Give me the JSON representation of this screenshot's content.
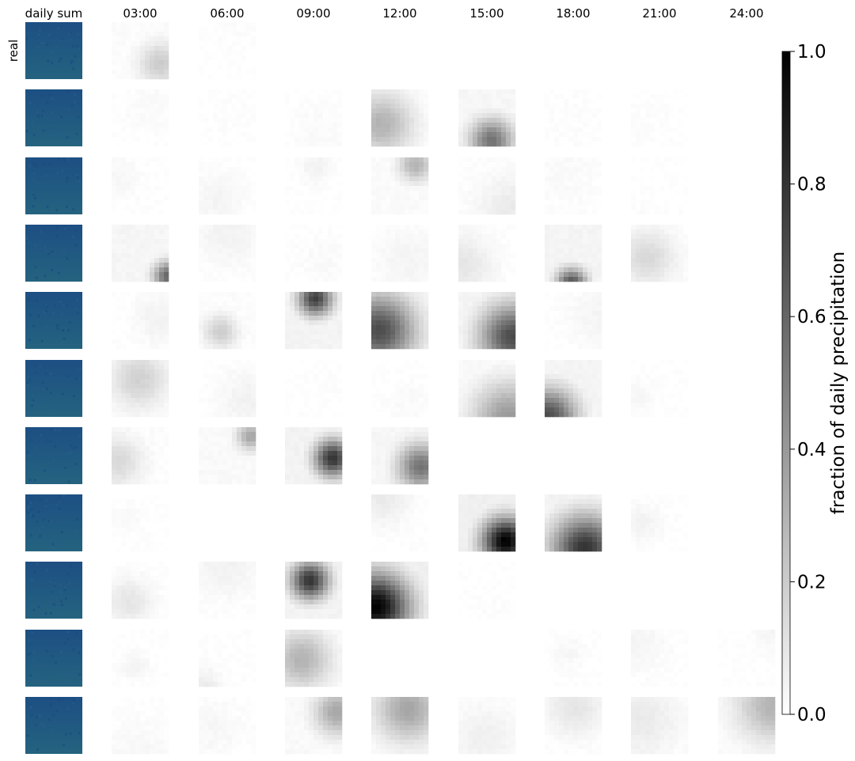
{
  "chart_data": {
    "type": "heatmap",
    "title": "",
    "column_headers": [
      "daily sum",
      "03:00",
      "06:00",
      "09:00",
      "12:00",
      "15:00",
      "18:00",
      "21:00",
      "24:00"
    ],
    "row_labels": [
      "real",
      "",
      "",
      "",
      "",
      "",
      "",
      "",
      "",
      "",
      ""
    ],
    "colorbar": {
      "label": "fraction of daily precipitation",
      "range": [
        0.0,
        1.0
      ],
      "ticks": [
        0.0,
        0.2,
        0.4,
        0.6,
        0.8,
        1.0
      ],
      "tick_labels": [
        "0.0",
        "0.2",
        "0.4",
        "0.6",
        "0.8",
        "1.0"
      ],
      "colormap": "gray_r"
    },
    "daily_sum_colors": [
      "#1d4f83",
      "#24637f"
    ],
    "cell_max_fraction": [
      [
        0.2,
        0.01,
        0.0,
        0.0,
        0.0,
        0.0,
        0.0,
        0.0
      ],
      [
        0.02,
        0.01,
        0.02,
        0.3,
        0.55,
        0.01,
        0.01,
        0.0
      ],
      [
        0.03,
        0.04,
        0.05,
        0.3,
        0.08,
        0.02,
        0.01,
        0.0
      ],
      [
        0.6,
        0.05,
        0.02,
        0.04,
        0.1,
        0.7,
        0.15,
        0.0
      ],
      [
        0.05,
        0.2,
        0.75,
        0.7,
        0.7,
        0.04,
        0.0,
        0.0
      ],
      [
        0.18,
        0.05,
        0.01,
        0.02,
        0.4,
        0.7,
        0.03,
        0.0
      ],
      [
        0.15,
        0.35,
        0.8,
        0.55,
        0.0,
        0.0,
        0.0,
        0.0
      ],
      [
        0.02,
        0.0,
        0.0,
        0.08,
        1.0,
        0.8,
        0.05,
        0.0
      ],
      [
        0.1,
        0.05,
        0.8,
        1.0,
        0.01,
        0.0,
        0.0,
        0.0
      ],
      [
        0.05,
        0.08,
        0.3,
        0.0,
        0.0,
        0.03,
        0.04,
        0.04
      ],
      [
        0.03,
        0.03,
        0.35,
        0.35,
        0.06,
        0.1,
        0.08,
        0.3
      ]
    ]
  }
}
